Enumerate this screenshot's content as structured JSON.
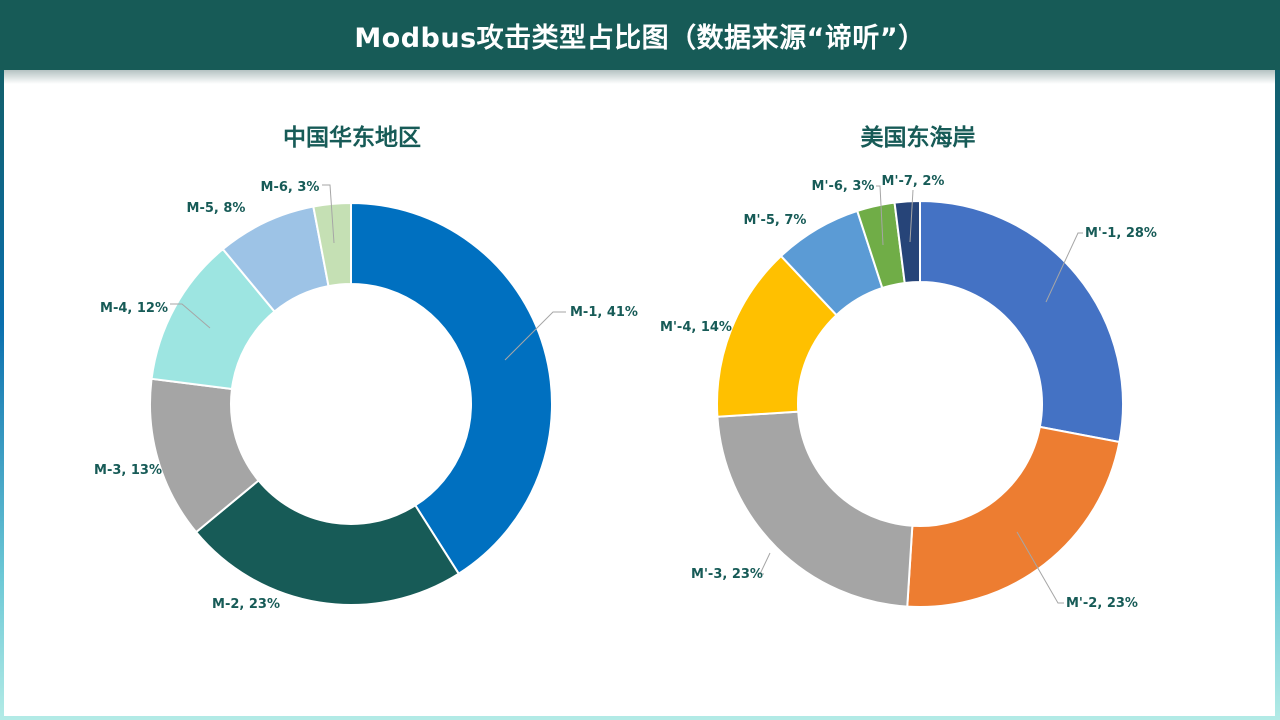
{
  "header": {
    "title": "Modbus攻击类型占比图（数据来源“谛听”）"
  },
  "colors": {
    "header_bg": "#175b57",
    "label_text": "#175b57"
  },
  "chart_data": [
    {
      "type": "pie",
      "subtype": "donut",
      "title": "中国华东地区",
      "categories": [
        "M-1",
        "M-2",
        "M-3",
        "M-4",
        "M-5",
        "M-6"
      ],
      "values": [
        41,
        23,
        13,
        12,
        8,
        3
      ],
      "unit": "%",
      "labels": [
        "M-1, 41%",
        "M-2, 23%",
        "M-3, 13%",
        "M-4, 12%",
        "M-5, 8%",
        "M-6, 3%"
      ],
      "colors": [
        "#0070c0",
        "#175b57",
        "#a5a5a5",
        "#9de5e1",
        "#9dc3e6",
        "#c5e0b4"
      ],
      "start_angle": "12 o'clock, clockwise",
      "legend": "none (data labels with leader lines)"
    },
    {
      "type": "pie",
      "subtype": "donut",
      "title": "美国东海岸",
      "categories": [
        "M'-1",
        "M'-2",
        "M'-3",
        "M'-4",
        "M'-5",
        "M'-6",
        "M'-7"
      ],
      "values": [
        28,
        23,
        23,
        14,
        7,
        3,
        2
      ],
      "unit": "%",
      "labels": [
        "M'-1, 28%",
        "M'-2, 23%",
        "M'-3, 23%",
        "M'-4, 14%",
        "M'-5, 7%",
        "M'-6, 3%",
        "M'-7, 2%"
      ],
      "colors": [
        "#4472c4",
        "#ed7d31",
        "#a5a5a5",
        "#ffc000",
        "#5b9bd5",
        "#70ad47",
        "#264478"
      ],
      "start_angle": "12 o'clock, clockwise",
      "legend": "none (data labels with leader lines)"
    }
  ]
}
